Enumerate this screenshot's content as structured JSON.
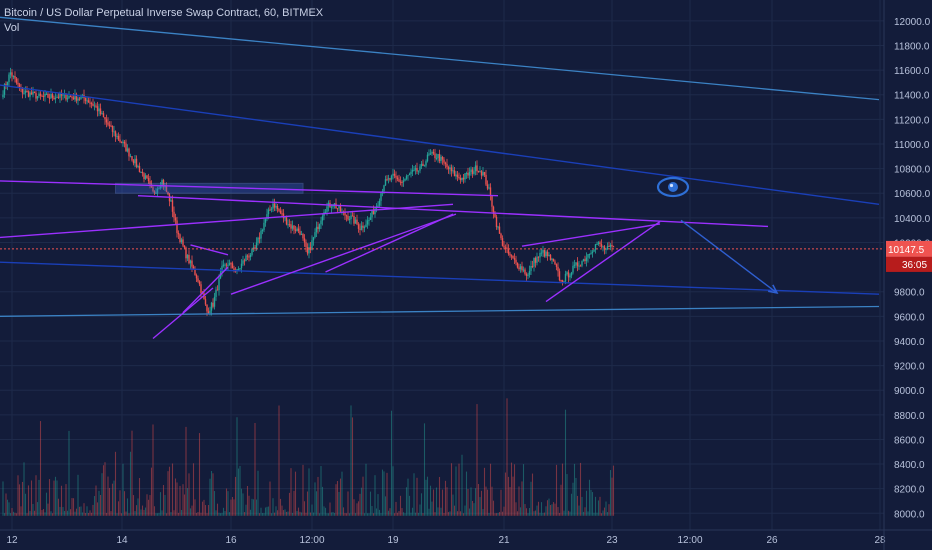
{
  "header": {
    "symbol_line": "Bitcoin / US Dollar Perpetual Inverse Swap Contract, 60, BITMEX",
    "indicator": "Vol"
  },
  "price_labels": {
    "last_price": "10147.5",
    "countdown": "36:05"
  },
  "colors": {
    "background": "#131c3a",
    "grid": "#1e2a4a",
    "axis_text": "#b8c2db",
    "candle_up": "#26a69a",
    "candle_down": "#ef5350",
    "trend_blue": "#1a3fb8",
    "trend_light": "#3b82c4",
    "trend_purple": "#9b30ff",
    "last_price": "#ef5350",
    "support_zone": "#3a5fcd",
    "projection": "#2f5fd0"
  },
  "chart_data": {
    "type": "candlestick",
    "title": "Bitcoin / US Dollar Perpetual Inverse Swap Contract, 60, BITMEX",
    "x_tick_labels": [
      "12",
      "14",
      "16",
      "12:00",
      "19",
      "21",
      "23",
      "12:00",
      "26",
      "28"
    ],
    "y_tick_labels": [
      "12000.0",
      "11800.0",
      "11600.0",
      "11400.0",
      "11200.0",
      "11000.0",
      "10800.0",
      "10600.0",
      "10400.0",
      "10200.0",
      "9800.0",
      "9600.0",
      "9400.0",
      "9200.0",
      "9000.0",
      "8800.0",
      "8600.0",
      "8400.0",
      "8200.0",
      "8000.0"
    ],
    "ylim": [
      7970,
      12080
    ],
    "price_keypoints": [
      [
        0,
        11430
      ],
      [
        5,
        11580
      ],
      [
        12,
        11430
      ],
      [
        25,
        11380
      ],
      [
        40,
        11390
      ],
      [
        55,
        11370
      ],
      [
        62,
        11300
      ],
      [
        72,
        11120
      ],
      [
        80,
        11000
      ],
      [
        88,
        10850
      ],
      [
        96,
        10700
      ],
      [
        100,
        10600
      ],
      [
        106,
        10700
      ],
      [
        112,
        10520
      ],
      [
        116,
        10300
      ],
      [
        122,
        10100
      ],
      [
        130,
        9900
      ],
      [
        136,
        9640
      ],
      [
        140,
        9700
      ],
      [
        146,
        9980
      ],
      [
        150,
        10030
      ],
      [
        156,
        9960
      ],
      [
        162,
        10080
      ],
      [
        168,
        10140
      ],
      [
        174,
        10360
      ],
      [
        180,
        10520
      ],
      [
        186,
        10420
      ],
      [
        192,
        10330
      ],
      [
        198,
        10290
      ],
      [
        203,
        10100
      ],
      [
        208,
        10270
      ],
      [
        214,
        10470
      ],
      [
        220,
        10520
      ],
      [
        226,
        10440
      ],
      [
        232,
        10400
      ],
      [
        238,
        10320
      ],
      [
        244,
        10380
      ],
      [
        250,
        10530
      ],
      [
        254,
        10680
      ],
      [
        260,
        10730
      ],
      [
        266,
        10690
      ],
      [
        272,
        10760
      ],
      [
        278,
        10790
      ],
      [
        284,
        10910
      ],
      [
        290,
        10900
      ],
      [
        296,
        10810
      ],
      [
        302,
        10740
      ],
      [
        306,
        10720
      ],
      [
        312,
        10770
      ],
      [
        316,
        10810
      ],
      [
        320,
        10760
      ],
      [
        324,
        10620
      ],
      [
        328,
        10400
      ],
      [
        332,
        10220
      ],
      [
        336,
        10120
      ],
      [
        342,
        10030
      ],
      [
        346,
        9990
      ],
      [
        350,
        9930
      ],
      [
        354,
        10050
      ],
      [
        360,
        10120
      ],
      [
        364,
        10080
      ],
      [
        368,
        10010
      ],
      [
        372,
        9880
      ],
      [
        376,
        9930
      ],
      [
        382,
        10010
      ],
      [
        388,
        10070
      ],
      [
        392,
        10140
      ],
      [
        396,
        10190
      ],
      [
        402,
        10140
      ],
      [
        407,
        10160
      ]
    ],
    "volume_range": [
      7980,
      9000
    ],
    "trendlines": [
      {
        "name": "upper-channel-top",
        "from": [
          -3,
          12030
        ],
        "to": [
          584,
          11360
        ]
      },
      {
        "name": "upper-channel-bottom",
        "from": [
          -3,
          11480
        ],
        "to": [
          584,
          10510
        ]
      },
      {
        "name": "lower-channel-bottom",
        "from": [
          -3,
          10040
        ],
        "to": [
          584,
          9780
        ]
      },
      {
        "name": "long-support",
        "from": [
          -3,
          9600
        ],
        "to": [
          584,
          9680
        ]
      },
      {
        "name": "resistance-line",
        "from": [
          -3,
          10700
        ],
        "to": [
          330,
          10580
        ]
      },
      {
        "name": "neckline",
        "from": [
          -3,
          10240
        ],
        "to": [
          300,
          10510
        ]
      },
      {
        "name": "flag-top",
        "from": [
          90,
          10580
        ],
        "to": [
          510,
          10330
        ]
      },
      {
        "name": "wedge-support-1",
        "from": [
          100,
          9420
        ],
        "to": [
          140,
          9830
        ]
      },
      {
        "name": "wedge-support-2",
        "from": [
          120,
          9630
        ],
        "to": [
          150,
          10000
        ]
      },
      {
        "name": "wedge-top-1",
        "from": [
          125,
          10180
        ],
        "to": [
          150,
          10100
        ]
      },
      {
        "name": "triangle-support",
        "from": [
          152,
          9780
        ],
        "to": [
          302,
          10430
        ]
      },
      {
        "name": "rise-support",
        "from": [
          215,
          9960
        ],
        "to": [
          300,
          10430
        ]
      },
      {
        "name": "recent-top",
        "from": [
          346,
          10170
        ],
        "to": [
          438,
          10350
        ]
      },
      {
        "name": "recent-support",
        "from": [
          362,
          9720
        ],
        "to": [
          438,
          10370
        ]
      }
    ],
    "projection_arrow": {
      "from": [
        452,
        10380
      ],
      "to": [
        516,
        9790
      ]
    },
    "support_zone_price": [
      10600,
      10680
    ],
    "last_price": 10147.5
  }
}
